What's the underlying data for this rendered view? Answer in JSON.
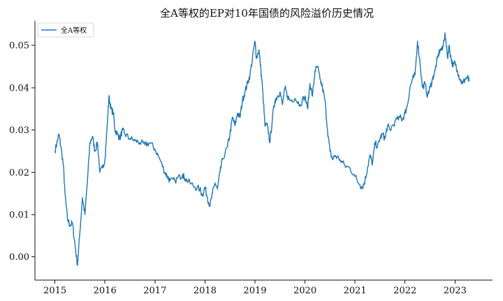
{
  "chart_data": {
    "type": "line",
    "title": "全A等权的EP对10年国债的风险溢价历史情况",
    "xlabel": "",
    "ylabel": "",
    "x_ticks": [
      "2015",
      "2016",
      "2017",
      "2018",
      "2019",
      "2020",
      "2021",
      "2022",
      "2023"
    ],
    "y_ticks": [
      "0.00",
      "0.01",
      "0.02",
      "0.03",
      "0.04",
      "0.05"
    ],
    "xlim": [
      2014.6,
      2023.75
    ],
    "ylim": [
      -0.0055,
      0.0558
    ],
    "grid": false,
    "legend_position": "top-left",
    "series": [
      {
        "name": "全A等权",
        "color": "#1f77b4",
        "points": [
          [
            2015.0,
            0.025
          ],
          [
            2015.05,
            0.0275
          ],
          [
            2015.08,
            0.029
          ],
          [
            2015.12,
            0.026
          ],
          [
            2015.17,
            0.0215
          ],
          [
            2015.2,
            0.015
          ],
          [
            2015.25,
            0.009
          ],
          [
            2015.3,
            0.0075
          ],
          [
            2015.35,
            0.008
          ],
          [
            2015.4,
            0.003
          ],
          [
            2015.45,
            -0.002
          ],
          [
            2015.5,
            0.006
          ],
          [
            2015.55,
            0.014
          ],
          [
            2015.6,
            0.01
          ],
          [
            2015.65,
            0.018
          ],
          [
            2015.7,
            0.027
          ],
          [
            2015.75,
            0.0285
          ],
          [
            2015.8,
            0.025
          ],
          [
            2015.85,
            0.027
          ],
          [
            2015.9,
            0.02
          ],
          [
            2015.95,
            0.021
          ],
          [
            2016.0,
            0.023
          ],
          [
            2016.05,
            0.032
          ],
          [
            2016.08,
            0.038
          ],
          [
            2016.12,
            0.035
          ],
          [
            2016.17,
            0.034
          ],
          [
            2016.2,
            0.03
          ],
          [
            2016.25,
            0.029
          ],
          [
            2016.3,
            0.028
          ],
          [
            2016.35,
            0.03
          ],
          [
            2016.4,
            0.029
          ],
          [
            2016.5,
            0.028
          ],
          [
            2016.6,
            0.0275
          ],
          [
            2016.7,
            0.027
          ],
          [
            2016.8,
            0.0265
          ],
          [
            2016.9,
            0.027
          ],
          [
            2017.0,
            0.0255
          ],
          [
            2017.1,
            0.023
          ],
          [
            2017.2,
            0.02
          ],
          [
            2017.25,
            0.019
          ],
          [
            2017.3,
            0.018
          ],
          [
            2017.4,
            0.018
          ],
          [
            2017.5,
            0.019
          ],
          [
            2017.55,
            0.0195
          ],
          [
            2017.6,
            0.0185
          ],
          [
            2017.7,
            0.0175
          ],
          [
            2017.8,
            0.0165
          ],
          [
            2017.9,
            0.016
          ],
          [
            2017.95,
            0.0145
          ],
          [
            2018.0,
            0.0165
          ],
          [
            2018.05,
            0.014
          ],
          [
            2018.1,
            0.012
          ],
          [
            2018.15,
            0.015
          ],
          [
            2018.2,
            0.0175
          ],
          [
            2018.25,
            0.016
          ],
          [
            2018.3,
            0.02
          ],
          [
            2018.35,
            0.023
          ],
          [
            2018.45,
            0.026
          ],
          [
            2018.5,
            0.029
          ],
          [
            2018.55,
            0.033
          ],
          [
            2018.6,
            0.031
          ],
          [
            2018.65,
            0.034
          ],
          [
            2018.7,
            0.033
          ],
          [
            2018.75,
            0.037
          ],
          [
            2018.8,
            0.039
          ],
          [
            2018.85,
            0.041
          ],
          [
            2018.9,
            0.043
          ],
          [
            2018.95,
            0.047
          ],
          [
            2019.0,
            0.051
          ],
          [
            2019.03,
            0.047
          ],
          [
            2019.08,
            0.049
          ],
          [
            2019.12,
            0.044
          ],
          [
            2019.15,
            0.04
          ],
          [
            2019.2,
            0.031
          ],
          [
            2019.25,
            0.031
          ],
          [
            2019.3,
            0.027
          ],
          [
            2019.35,
            0.033
          ],
          [
            2019.4,
            0.037
          ],
          [
            2019.45,
            0.038
          ],
          [
            2019.5,
            0.039
          ],
          [
            2019.55,
            0.036
          ],
          [
            2019.6,
            0.04
          ],
          [
            2019.65,
            0.038
          ],
          [
            2019.7,
            0.037
          ],
          [
            2019.8,
            0.0375
          ],
          [
            2019.9,
            0.036
          ],
          [
            2020.0,
            0.038
          ],
          [
            2020.05,
            0.035
          ],
          [
            2020.1,
            0.041
          ],
          [
            2020.15,
            0.038
          ],
          [
            2020.2,
            0.044
          ],
          [
            2020.25,
            0.045
          ],
          [
            2020.3,
            0.042
          ],
          [
            2020.35,
            0.04
          ],
          [
            2020.4,
            0.037
          ],
          [
            2020.45,
            0.03
          ],
          [
            2020.5,
            0.025
          ],
          [
            2020.55,
            0.023
          ],
          [
            2020.6,
            0.024
          ],
          [
            2020.7,
            0.023
          ],
          [
            2020.8,
            0.0215
          ],
          [
            2020.9,
            0.021
          ],
          [
            2021.0,
            0.019
          ],
          [
            2021.1,
            0.017
          ],
          [
            2021.15,
            0.0165
          ],
          [
            2021.2,
            0.018
          ],
          [
            2021.25,
            0.021
          ],
          [
            2021.3,
            0.024
          ],
          [
            2021.35,
            0.022
          ],
          [
            2021.4,
            0.027
          ],
          [
            2021.45,
            0.026
          ],
          [
            2021.5,
            0.028
          ],
          [
            2021.55,
            0.029
          ],
          [
            2021.6,
            0.028
          ],
          [
            2021.65,
            0.031
          ],
          [
            2021.7,
            0.03
          ],
          [
            2021.8,
            0.032
          ],
          [
            2021.9,
            0.033
          ],
          [
            2021.95,
            0.0325
          ],
          [
            2022.0,
            0.034
          ],
          [
            2022.05,
            0.036
          ],
          [
            2022.1,
            0.04
          ],
          [
            2022.15,
            0.042
          ],
          [
            2022.2,
            0.043
          ],
          [
            2022.25,
            0.051
          ],
          [
            2022.3,
            0.046
          ],
          [
            2022.35,
            0.04
          ],
          [
            2022.4,
            0.041
          ],
          [
            2022.45,
            0.038
          ],
          [
            2022.5,
            0.04
          ],
          [
            2022.55,
            0.042
          ],
          [
            2022.6,
            0.044
          ],
          [
            2022.65,
            0.047
          ],
          [
            2022.7,
            0.049
          ],
          [
            2022.75,
            0.049
          ],
          [
            2022.8,
            0.053
          ],
          [
            2022.85,
            0.047
          ],
          [
            2022.88,
            0.05
          ],
          [
            2022.92,
            0.047
          ],
          [
            2022.96,
            0.045
          ],
          [
            2023.0,
            0.046
          ],
          [
            2023.05,
            0.044
          ],
          [
            2023.1,
            0.042
          ],
          [
            2023.15,
            0.041
          ],
          [
            2023.2,
            0.042
          ],
          [
            2023.25,
            0.0425
          ],
          [
            2023.28,
            0.0415
          ]
        ]
      }
    ]
  }
}
